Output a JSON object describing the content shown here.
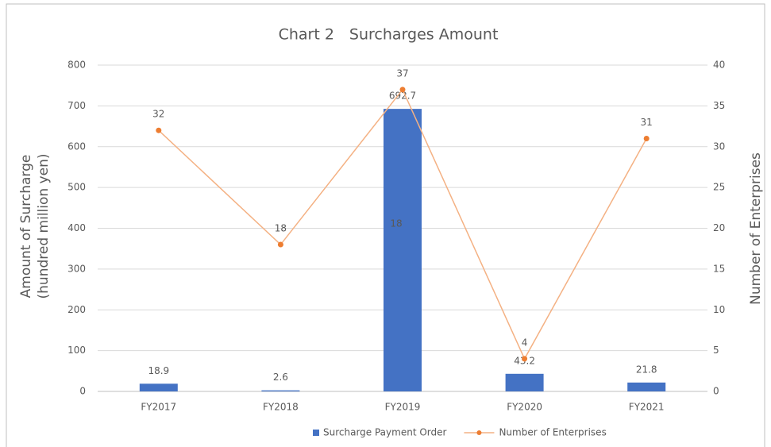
{
  "chart_data": {
    "type": "bar",
    "title": "Chart 2　Surcharges Amount",
    "ylabel": [
      "Amount of Surcharge",
      "(hundred million yen)"
    ],
    "y2label": "Number of Enterprises",
    "categories": [
      "FY2017",
      "FY2018",
      "FY2019",
      "FY2020",
      "FY2021"
    ],
    "series": [
      {
        "name": "Surcharge Payment Order",
        "type": "bar",
        "color": "#4472c4",
        "values": [
          18.9,
          2.6,
          692.7,
          43.2,
          21.8
        ]
      },
      {
        "name": "Number of Enterprises",
        "type": "line",
        "axis": "y2",
        "color": "#f4b183",
        "marker_color": "#ed7d31",
        "values": [
          32,
          18,
          37,
          4,
          31
        ]
      }
    ],
    "annotations": [
      "18"
    ],
    "ylim": [
      0,
      800
    ],
    "yticks": [
      0,
      100,
      200,
      300,
      400,
      500,
      600,
      700,
      800
    ],
    "y2lim": [
      0,
      40
    ],
    "y2ticks": [
      0,
      5,
      10,
      15,
      20,
      25,
      30,
      35,
      40
    ],
    "grid": true,
    "legend": "bottom"
  }
}
